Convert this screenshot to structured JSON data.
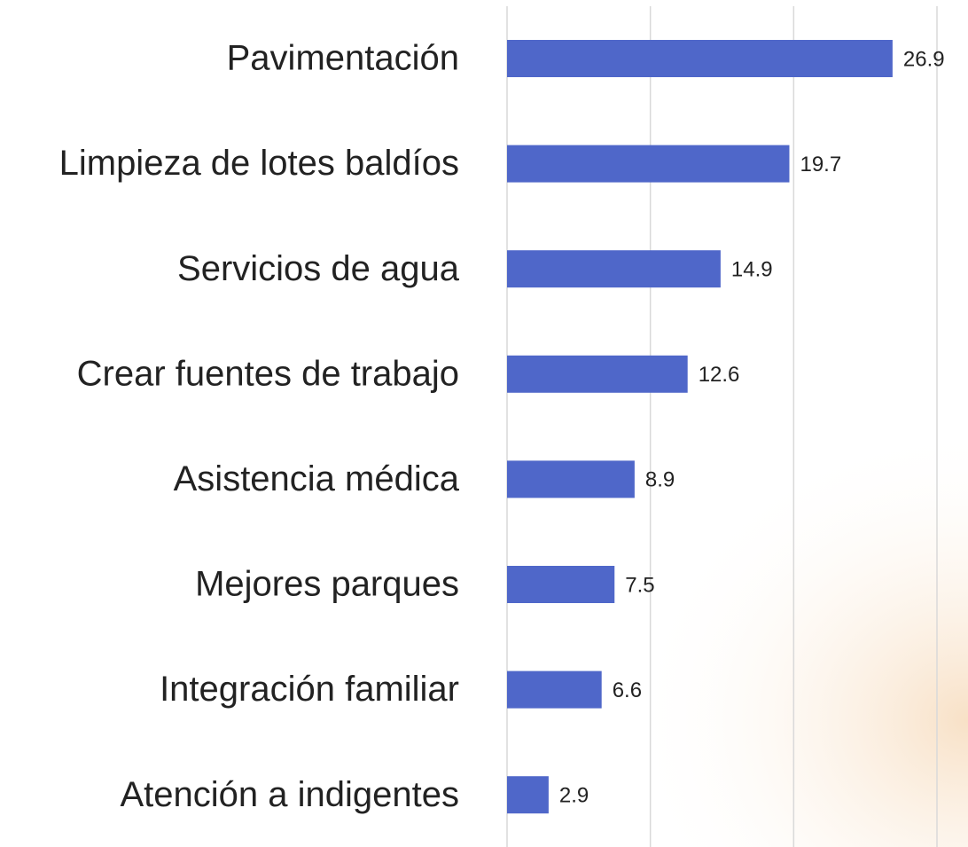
{
  "chart_data": {
    "type": "barh",
    "categories": [
      "Pavimentación",
      "Limpieza de lotes baldíos",
      "Servicios de agua",
      "Crear fuentes de trabajo",
      "Asistencia médica",
      "Mejores parques",
      "Integración familiar",
      "Atención a indigentes"
    ],
    "values": [
      26.9,
      19.7,
      14.9,
      12.6,
      8.9,
      7.5,
      6.6,
      2.9
    ],
    "color": "#4f67c9",
    "xlim": [
      0,
      30
    ],
    "xticks": [
      0,
      10,
      20,
      30
    ],
    "grid": true
  }
}
